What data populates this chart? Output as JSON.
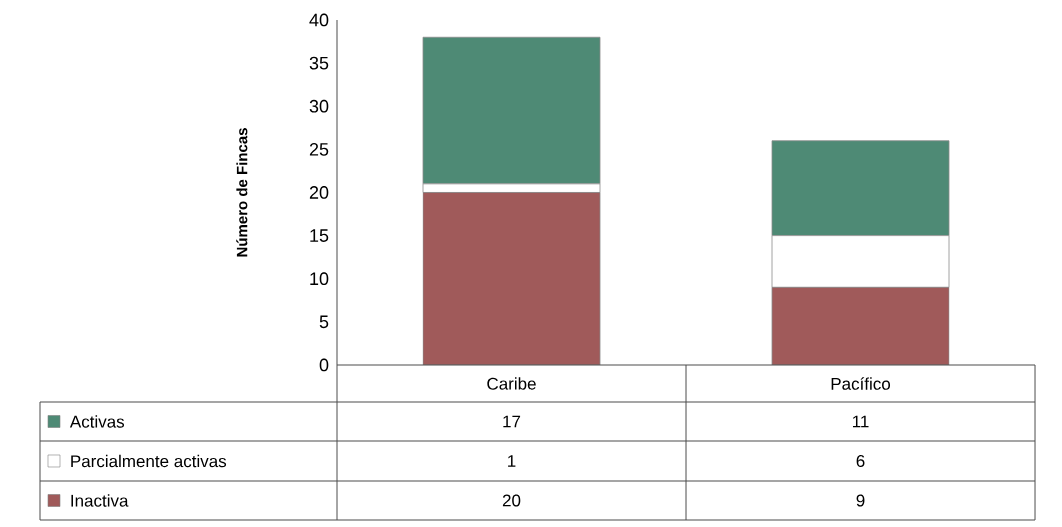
{
  "chart_data": {
    "type": "bar",
    "stacked": true,
    "ylabel": "Número de Fincas",
    "categories": [
      "Caribe",
      "Pacífico"
    ],
    "series": [
      {
        "name": "Inactiva",
        "color": "#a05a5a",
        "values": [
          20,
          9
        ]
      },
      {
        "name": "Parcialmente activas",
        "color": "#ffffff",
        "values": [
          1,
          6
        ]
      },
      {
        "name": "Activas",
        "color": "#4e8a75",
        "values": [
          17,
          11
        ]
      }
    ],
    "ylim": [
      0,
      40
    ],
    "yticks": [
      0,
      5,
      10,
      15,
      20,
      25,
      30,
      35,
      40
    ],
    "data_labels": true,
    "legend": "bottom left"
  }
}
